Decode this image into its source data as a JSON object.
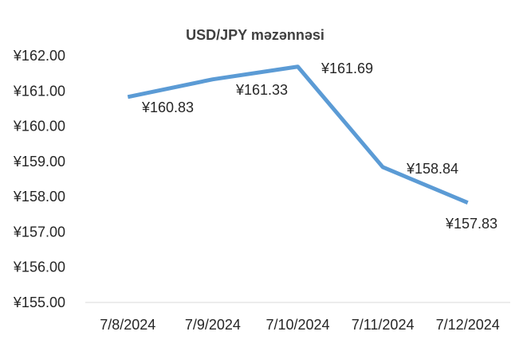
{
  "chart_data": {
    "type": "line",
    "title": "USD/JPY məzənnəsi",
    "xlabel": "",
    "ylabel": "",
    "categories": [
      "7/8/2024",
      "7/9/2024",
      "7/10/2024",
      "7/11/2024",
      "7/12/2024"
    ],
    "series": [
      {
        "values": [
          160.83,
          161.33,
          161.69,
          158.84,
          157.83
        ],
        "data_labels": [
          "¥160.83",
          "¥161.33",
          "¥161.69",
          "¥158.84",
          "¥157.83"
        ],
        "color": "#5b9bd5"
      }
    ],
    "ylim": [
      155,
      162
    ],
    "yticks": [
      155,
      156,
      157,
      158,
      159,
      160,
      161,
      162
    ],
    "ytick_labels": [
      "¥155.00",
      "¥156.00",
      "¥157.00",
      "¥158.00",
      "¥159.00",
      "¥160.00",
      "¥161.00",
      "¥162.00"
    ],
    "grid": false,
    "legend": "none",
    "axis_color": "#d9d9d9"
  }
}
